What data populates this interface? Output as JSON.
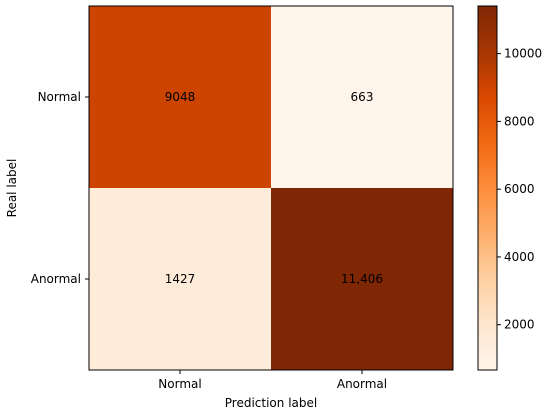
{
  "chart_data": {
    "type": "heatmap",
    "title": "",
    "xlabel": "Prediction label",
    "ylabel": "Real label",
    "x_categories": [
      "Normal",
      "Anormal"
    ],
    "y_categories": [
      "Normal",
      "Anormal"
    ],
    "values": [
      [
        9048,
        663
      ],
      [
        1427,
        11406
      ]
    ],
    "value_labels": [
      [
        "9048",
        "663"
      ],
      [
        "1427",
        "11,406"
      ]
    ],
    "colormap": "Oranges",
    "colorbar": {
      "vmin": 663,
      "vmax": 11406,
      "ticks": [
        2000,
        4000,
        6000,
        8000,
        10000
      ],
      "tick_labels": [
        "2000",
        "4000",
        "6000",
        "8000",
        "10000"
      ]
    },
    "colors": {
      "low": "#fff5eb",
      "mid": "#fd8d3c",
      "high": "#7f2704"
    }
  }
}
